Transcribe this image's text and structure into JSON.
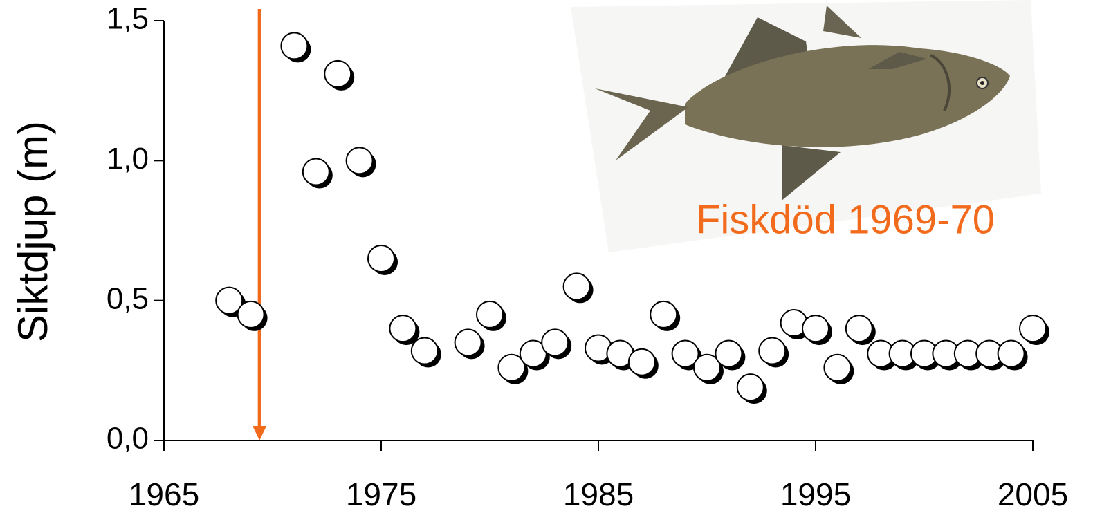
{
  "chart_data": {
    "type": "scatter",
    "y_label": "Siktdjup (m)",
    "x": [
      1968,
      1969,
      1971,
      1972,
      1973,
      1974,
      1975,
      1976,
      1977,
      1979,
      1980,
      1981,
      1982,
      1983,
      1984,
      1985,
      1986,
      1987,
      1988,
      1989,
      1990,
      1991,
      1992,
      1993,
      1994,
      1995,
      1996,
      1997,
      1998,
      1999,
      2000,
      2001,
      2002,
      2003,
      2004,
      2005
    ],
    "values": [
      0.5,
      0.45,
      1.41,
      0.96,
      1.31,
      1.0,
      0.65,
      0.4,
      0.32,
      0.35,
      0.45,
      0.26,
      0.31,
      0.35,
      0.55,
      0.33,
      0.31,
      0.28,
      0.45,
      0.31,
      0.26,
      0.31,
      0.19,
      0.32,
      0.42,
      0.4,
      0.26,
      0.4,
      0.31,
      0.31,
      0.31,
      0.31,
      0.31,
      0.31,
      0.31,
      0.4
    ],
    "xlim": [
      1965,
      2005
    ],
    "xticks": [
      1965,
      1975,
      1985,
      1995,
      2005
    ],
    "ylim": [
      0,
      1.5
    ],
    "yticks": [
      {
        "value": 0,
        "label": "0,0"
      },
      {
        "value": 0.5,
        "label": "0,5"
      },
      {
        "value": 1.0,
        "label": "1,0"
      },
      {
        "value": 1.5,
        "label": "1,5"
      }
    ],
    "annotation": {
      "text": "Fiskdöd 1969-70",
      "x": 1969.4,
      "color": "#f26b1d"
    }
  }
}
